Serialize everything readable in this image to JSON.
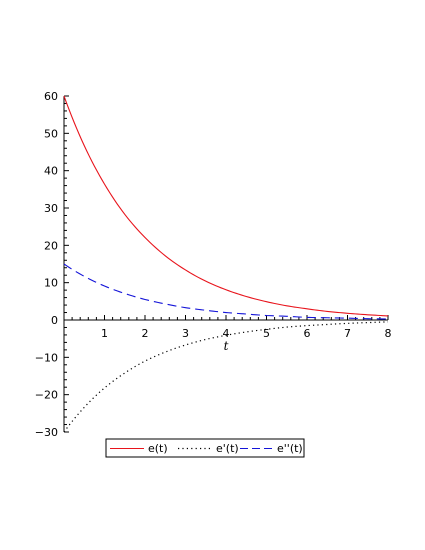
{
  "chart_data": {
    "type": "line",
    "title": "",
    "xlabel": "t",
    "ylabel": "",
    "xlim": [
      0,
      8
    ],
    "ylim": [
      -30,
      60
    ],
    "x_ticks": [
      1,
      2,
      3,
      4,
      5,
      6,
      7,
      8
    ],
    "y_ticks": [
      -30,
      -20,
      -10,
      0,
      10,
      20,
      30,
      40,
      50,
      60
    ],
    "x_tick_labels": [
      "1",
      "2",
      "3",
      "4",
      "5",
      "6",
      "7",
      "8"
    ],
    "y_tick_labels": [
      "−30",
      "−20",
      "−10",
      "0",
      "10",
      "20",
      "30",
      "40",
      "50",
      "60"
    ],
    "legend_position": "bottom",
    "grid": false,
    "x": [
      0,
      0.5,
      1,
      1.5,
      2,
      2.5,
      3,
      3.5,
      4,
      4.5,
      5,
      5.5,
      6,
      6.5,
      7,
      7.5,
      8
    ],
    "series": [
      {
        "name": "e(t)",
        "color": "#e8141c",
        "style": "solid",
        "values": [
          60,
          46.7,
          36.4,
          28.3,
          22.1,
          17.2,
          13.4,
          10.4,
          8.1,
          6.3,
          4.9,
          3.8,
          3.0,
          2.3,
          1.8,
          1.4,
          1.1
        ]
      },
      {
        "name": "e'(t)",
        "color": "#000000",
        "style": "dotted",
        "values": [
          -30,
          -23.4,
          -18.2,
          -14.2,
          -11.0,
          -8.6,
          -6.7,
          -5.2,
          -4.1,
          -3.2,
          -2.5,
          -1.9,
          -1.5,
          -1.2,
          -0.9,
          -0.7,
          -0.5
        ]
      },
      {
        "name": "e''(t)",
        "color": "#1414d8",
        "style": "dashed",
        "values": [
          15,
          11.7,
          9.1,
          7.1,
          5.5,
          4.3,
          3.3,
          2.6,
          2.0,
          1.6,
          1.2,
          1.0,
          0.7,
          0.6,
          0.5,
          0.35,
          0.27
        ]
      }
    ]
  }
}
